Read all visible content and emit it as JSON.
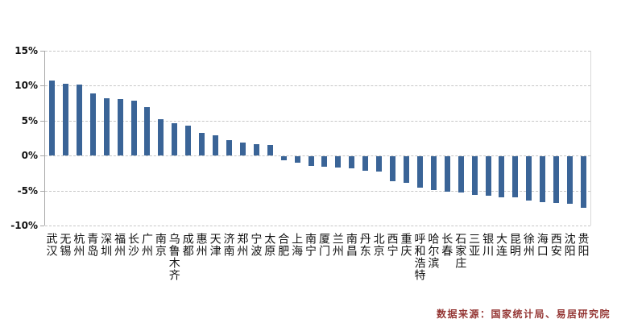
{
  "chart_data": {
    "type": "bar",
    "title": "",
    "xlabel": "",
    "ylabel": "",
    "categories": [
      "武汉",
      "无锡",
      "杭州",
      "青岛",
      "深圳",
      "福州",
      "长沙",
      "广州",
      "南京",
      "乌鲁木齐",
      "成都",
      "惠州",
      "天津",
      "济南",
      "郑州",
      "宁波",
      "太原",
      "合肥",
      "上海",
      "南宁",
      "厦门",
      "兰州",
      "南昌",
      "丹东",
      "北京",
      "西宁",
      "重庆",
      "呼和浩特",
      "哈尔滨",
      "长春",
      "石家庄",
      "三亚",
      "银川",
      "大连",
      "昆明",
      "徐州",
      "海口",
      "西安",
      "沈阳",
      "贵阳"
    ],
    "values": [
      10.7,
      10.3,
      10.2,
      8.9,
      8.2,
      8.1,
      7.8,
      6.9,
      5.2,
      4.6,
      4.3,
      3.2,
      2.9,
      2.2,
      1.9,
      1.6,
      1.5,
      -0.5,
      -0.9,
      -1.4,
      -1.5,
      -1.6,
      -1.7,
      -2.0,
      -2.2,
      -3.5,
      -3.8,
      -4.5,
      -4.8,
      -5.0,
      -5.2,
      -5.5,
      -5.6,
      -5.8,
      -5.9,
      -6.3,
      -6.6,
      -6.7,
      -6.8,
      -7.3
    ],
    "ylim": [
      -10,
      15
    ],
    "yticks": [
      15,
      10,
      5,
      0,
      -5,
      -10
    ],
    "ytick_labels": [
      "15%",
      "10%",
      "5%",
      "0%",
      "-5%",
      "-10%"
    ],
    "grid": true,
    "legend": "none",
    "bar_color": "#3a6497"
  },
  "colors": {
    "bar": "#3a6497",
    "axis": "#a6a6a6",
    "gridline": "#c6c6c6",
    "source_text": "#953735"
  },
  "source_note": "数据来源：国家统计局、易居研究院"
}
